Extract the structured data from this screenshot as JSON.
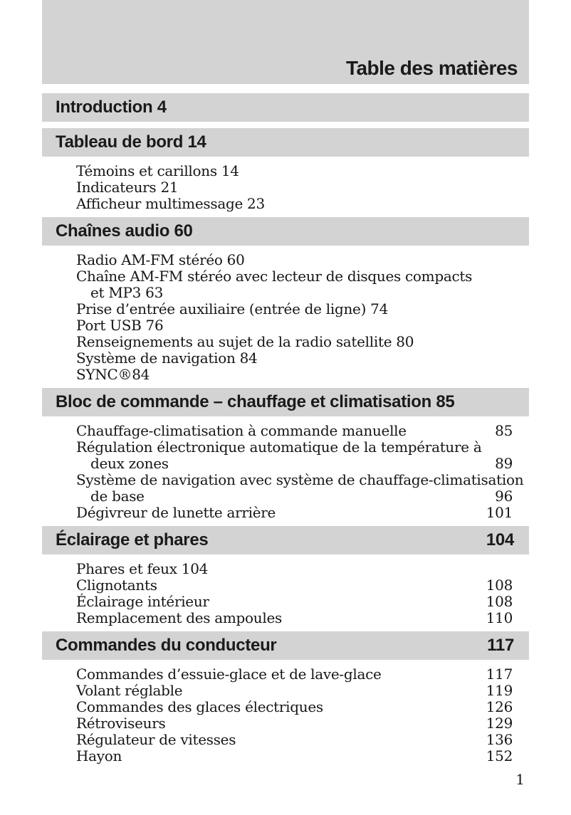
{
  "doc": {
    "title": "Table des matières",
    "folio": "1",
    "colors": {
      "bar_bg": "#d3d3d3",
      "text": "#161616"
    },
    "sections": [
      {
        "heading": "Introduction 4",
        "entries": []
      },
      {
        "heading": "Tableau de bord 14",
        "entries": [
          {
            "label": "Témoins et carillons 14"
          },
          {
            "label": "Indicateurs 21"
          },
          {
            "label": "Afficheur multimessage 23"
          }
        ]
      },
      {
        "heading": "Chaînes audio 60",
        "entries": [
          {
            "label": "Radio AM-FM stéréo 60"
          },
          {
            "label": "Chaîne AM-FM stéréo avec lecteur de disques compacts",
            "label2": "et MP3 63"
          },
          {
            "label": "Prise d’entrée auxiliaire (entrée de ligne) 74"
          },
          {
            "label": "Port USB 76"
          },
          {
            "label": "Renseignements au sujet de la radio satellite 80"
          },
          {
            "label": "Système de navigation 84"
          },
          {
            "label": "SYNC®84"
          }
        ]
      },
      {
        "heading": "Bloc de commande – chauffage et climatisation 85",
        "entries": [
          {
            "label": "Chauffage-climatisation à commande manuelle",
            "page": "85"
          },
          {
            "label": "Régulation électronique automatique de la température à",
            "label2": "deux zones",
            "page": "89"
          },
          {
            "label": "Système de navigation avec système de chauffage-climatisation",
            "label2": "de base",
            "page": "96"
          },
          {
            "label": "Dégivreur de lunette arrière",
            "page": "101"
          }
        ]
      },
      {
        "heading": "Éclairage et phares",
        "heading_page": "104",
        "entries": [
          {
            "label": "Phares et feux 104"
          },
          {
            "label": "Clignotants",
            "page": "108"
          },
          {
            "label": "Éclairage intérieur",
            "page": "108"
          },
          {
            "label": "Remplacement des ampoules",
            "page": "110"
          }
        ]
      },
      {
        "heading": "Commandes du conducteur",
        "heading_page": "117",
        "entries": [
          {
            "label": "Commandes d’essuie-glace et de lave-glace",
            "page": "117"
          },
          {
            "label": "Volant réglable",
            "page": "119"
          },
          {
            "label": "Commandes des glaces électriques",
            "page": "126"
          },
          {
            "label": "Rétroviseurs",
            "page": "129"
          },
          {
            "label": "Régulateur de vitesses",
            "page": "136"
          },
          {
            "label": "Hayon",
            "page": "152"
          }
        ]
      }
    ]
  }
}
